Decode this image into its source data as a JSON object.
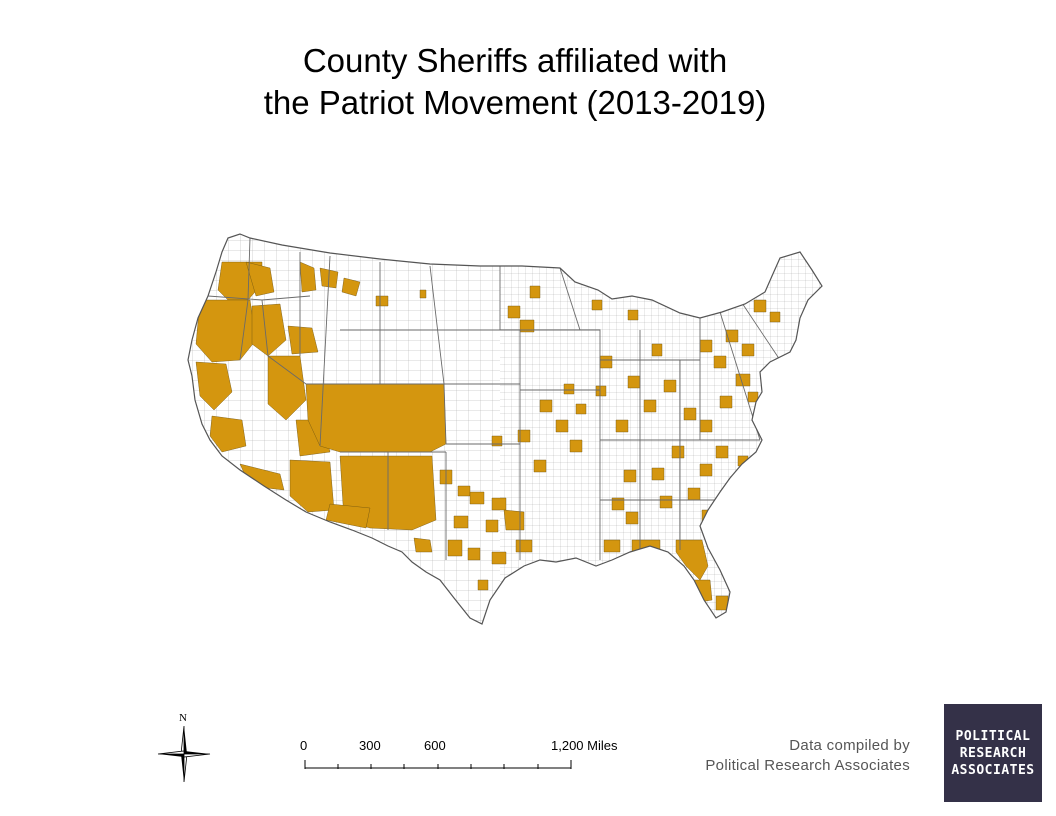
{
  "title_line1": "County Sheriffs affiliated with",
  "title_line2": "the Patriot Movement (2013-2019)",
  "compass": {
    "label": "N",
    "icon": "north-arrow-compass-icon"
  },
  "scale": {
    "labels": [
      "0",
      "300",
      "600",
      "1,200 Miles"
    ]
  },
  "credit": {
    "line1": "Data compiled by",
    "line2": "Political Research Associates"
  },
  "logo": {
    "lines": [
      "POLITICAL",
      "RESEARCH",
      "ASSOCIATES"
    ]
  },
  "colors": {
    "highlight": "#D4960F",
    "county_line": "#9a9a9a",
    "state_line": "#555555",
    "logo_bg": "#343148"
  }
}
